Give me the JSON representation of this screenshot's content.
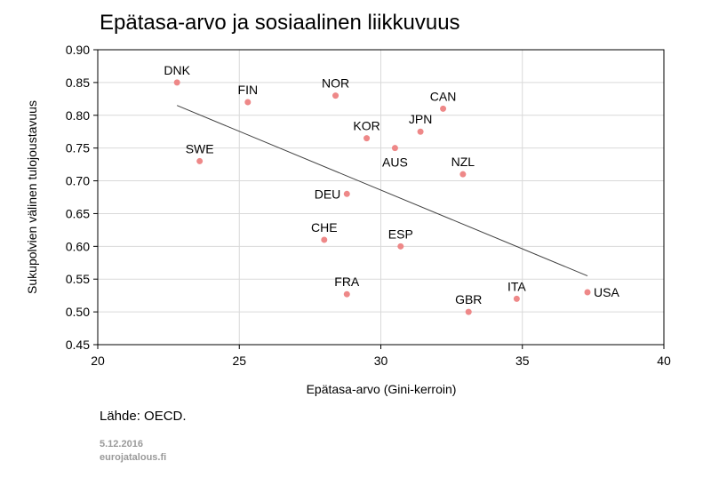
{
  "chart_data": {
    "type": "scatter",
    "title": "Epätasa-arvo ja sosiaalinen liikkuvuus",
    "xlabel": "Epätasa-arvo (Gini-kerroin)",
    "ylabel": "Sukupolvien välinen tulojoustavuus",
    "xlim": [
      20,
      40
    ],
    "ylim": [
      0.45,
      0.9
    ],
    "xticks": [
      20,
      25,
      30,
      35,
      40
    ],
    "yticks": [
      0.45,
      0.5,
      0.55,
      0.6,
      0.65,
      0.7,
      0.75,
      0.8,
      0.85,
      0.9
    ],
    "xtick_labels": [
      "20",
      "25",
      "30",
      "35",
      "40"
    ],
    "ytick_labels": [
      "0.45",
      "0.50",
      "0.55",
      "0.60",
      "0.65",
      "0.70",
      "0.75",
      "0.80",
      "0.85",
      "0.90"
    ],
    "grid": true,
    "points": [
      {
        "label": "DNK",
        "x": 22.8,
        "y": 0.85,
        "label_pos": "above"
      },
      {
        "label": "FIN",
        "x": 25.3,
        "y": 0.82,
        "label_pos": "above"
      },
      {
        "label": "NOR",
        "x": 28.4,
        "y": 0.83,
        "label_pos": "above"
      },
      {
        "label": "CAN",
        "x": 32.2,
        "y": 0.81,
        "label_pos": "above"
      },
      {
        "label": "JPN",
        "x": 31.4,
        "y": 0.775,
        "label_pos": "above"
      },
      {
        "label": "KOR",
        "x": 29.5,
        "y": 0.765,
        "label_pos": "above"
      },
      {
        "label": "AUS",
        "x": 30.5,
        "y": 0.75,
        "label_pos": "below"
      },
      {
        "label": "SWE",
        "x": 23.6,
        "y": 0.73,
        "label_pos": "above"
      },
      {
        "label": "NZL",
        "x": 32.9,
        "y": 0.71,
        "label_pos": "above"
      },
      {
        "label": "DEU",
        "x": 28.8,
        "y": 0.68,
        "label_pos": "left"
      },
      {
        "label": "CHE",
        "x": 28.0,
        "y": 0.61,
        "label_pos": "above"
      },
      {
        "label": "ESP",
        "x": 30.7,
        "y": 0.6,
        "label_pos": "above"
      },
      {
        "label": "FRA",
        "x": 28.8,
        "y": 0.527,
        "label_pos": "above"
      },
      {
        "label": "ITA",
        "x": 34.8,
        "y": 0.52,
        "label_pos": "above"
      },
      {
        "label": "GBR",
        "x": 33.1,
        "y": 0.5,
        "label_pos": "above"
      },
      {
        "label": "USA",
        "x": 37.3,
        "y": 0.53,
        "label_pos": "right"
      }
    ],
    "trendline": {
      "x": [
        22.8,
        37.3
      ],
      "y": [
        0.815,
        0.555
      ]
    },
    "colors": {
      "point": "#ee8888",
      "trend": "#404040",
      "grid": "#d9d9d9",
      "axis": "#000000"
    }
  },
  "source": "Lähde: OECD.",
  "date": "5.12.2016",
  "site": "eurojatalous.fi"
}
